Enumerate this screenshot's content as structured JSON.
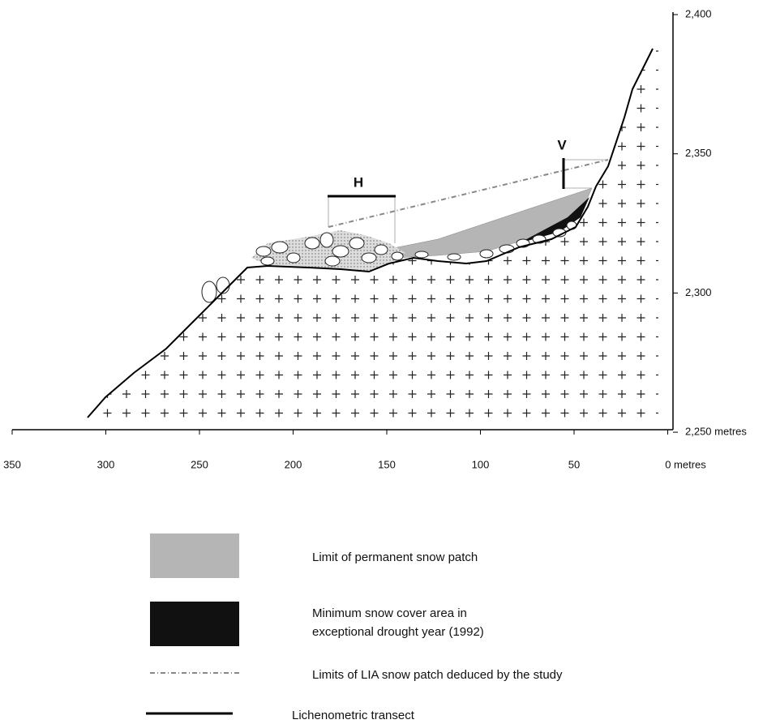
{
  "x_axis": {
    "ticks": [
      "350",
      "300",
      "250",
      "200",
      "150",
      "100",
      "50",
      "0 metres"
    ]
  },
  "y_axis": {
    "ticks": [
      "2,400",
      "2,350",
      "2,300",
      "2,250 metres"
    ]
  },
  "labels": {
    "h": "H",
    "v": "V"
  },
  "legend": [
    {
      "lines": [
        "Limit of permanent snow patch"
      ]
    },
    {
      "lines": [
        "Minimum snow cover area in",
        "exceptional drought year (1992)"
      ]
    },
    {
      "lines": [
        "Limits of LIA snow patch deduced by the study"
      ]
    },
    {
      "lines": [
        "Lichenometric transect"
      ]
    }
  ]
}
